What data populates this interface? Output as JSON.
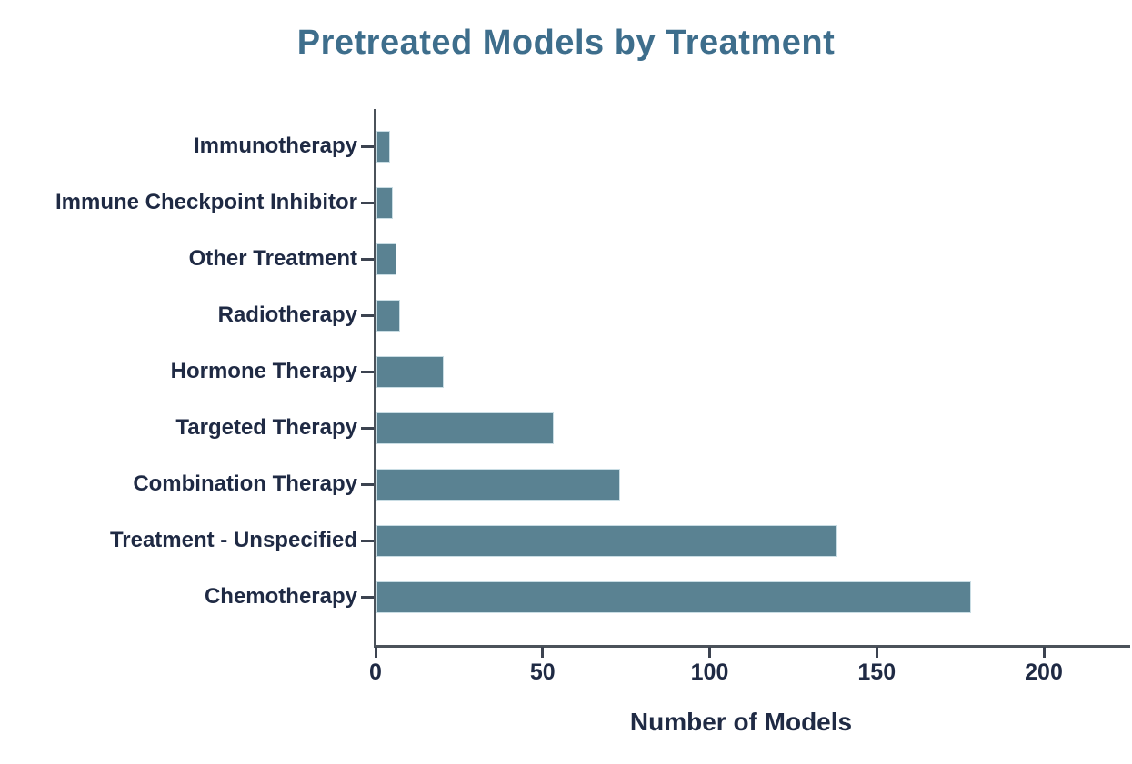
{
  "chart_data": {
    "type": "bar",
    "orientation": "horizontal",
    "title": "Pretreated Models by Treatment",
    "xlabel": "Number of Models",
    "ylabel": "",
    "categories": [
      "Immunotherapy",
      "Immune Checkpoint Inhibitor",
      "Other Treatment",
      "Radiotherapy",
      "Hormone Therapy",
      "Targeted Therapy",
      "Combination Therapy",
      "Treatment - Unspecified",
      "Chemotherapy"
    ],
    "values": [
      4,
      5,
      6,
      7,
      20,
      53,
      73,
      138,
      178
    ],
    "xticks": [
      0,
      50,
      100,
      150,
      200
    ],
    "xlim": [
      0,
      226
    ],
    "grid": false,
    "legend": null,
    "colors": {
      "bar": "#5a8292",
      "bar_edge": "#c9dde4",
      "title": "#3e6e8c",
      "text": "#1f2a44",
      "axis": "#4b525a",
      "tick": "#3c4350",
      "background": "#ffffff"
    }
  }
}
